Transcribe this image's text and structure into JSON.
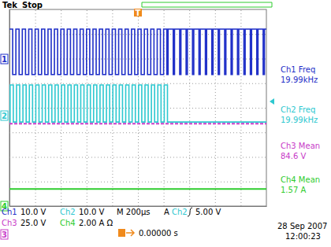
{
  "chart_data": {
    "type": "line",
    "xlim": [
      -1000,
      1000
    ],
    "xticks": [
      -800,
      -600,
      -400,
      -200,
      0,
      200,
      400,
      600,
      800
    ],
    "ylim": [
      -4,
      4
    ],
    "yticks": [
      -3,
      -2,
      -1,
      0,
      1,
      2,
      3
    ],
    "grid": true,
    "tick_labels": false,
    "annotations": [
      "Tek",
      "Stop",
      "Ch1",
      "10.0 V",
      "Ch2",
      "10.0 V",
      "M 200µs",
      "A",
      "Ch2",
      "5.00 V",
      "Ch3",
      "25.0 V",
      "Ch4",
      "2.00 A Ω",
      "0.00000 s",
      "28 Sep 2007",
      "12:00:23",
      "T"
    ],
    "series": [
      {
        "name": "1",
        "color": "#1f2fc8",
        "line_style": "step",
        "measure": "Ch1 Freq",
        "reading": "19.99kHz",
        "x": [
          -1000,
          -975,
          -950,
          -925,
          -900,
          -875,
          -850,
          -825,
          -800,
          -775,
          -750,
          -725,
          -700,
          -675,
          -650,
          -625,
          -600,
          -575,
          -550,
          -525,
          -500,
          -475,
          -450,
          -425,
          -400,
          -375,
          -350,
          -325,
          -300,
          -275,
          -250,
          -225,
          -200,
          -175,
          -150,
          -125,
          -100,
          -75,
          -50,
          -25,
          0,
          25,
          50,
          75,
          100,
          125,
          150,
          175,
          200,
          225,
          235,
          275,
          285,
          325,
          335,
          375,
          385,
          425,
          435,
          475,
          485,
          525,
          535,
          575,
          585,
          625,
          635,
          675,
          685,
          725,
          735,
          775,
          785,
          825,
          835,
          875,
          885,
          925,
          935,
          975,
          985,
          1000
        ],
        "values": [
          3.2,
          1.35,
          3.2,
          1.35,
          3.2,
          1.35,
          3.2,
          1.35,
          3.2,
          1.35,
          3.2,
          1.35,
          3.2,
          1.35,
          3.2,
          1.35,
          3.2,
          1.35,
          3.2,
          1.35,
          3.2,
          1.35,
          3.2,
          1.35,
          3.2,
          1.35,
          3.2,
          1.35,
          3.2,
          1.35,
          3.2,
          1.35,
          3.2,
          1.35,
          3.2,
          1.35,
          3.2,
          1.35,
          3.2,
          1.35,
          3.2,
          1.35,
          3.2,
          1.35,
          3.2,
          1.35,
          3.2,
          1.35,
          3.2,
          1.35,
          3.2,
          1.35,
          3.2,
          1.35,
          3.2,
          1.35,
          3.2,
          1.35,
          3.2,
          1.35,
          3.2,
          1.35,
          3.2,
          1.35,
          3.2,
          1.35,
          3.2,
          1.35,
          3.2,
          1.35,
          3.2,
          1.35,
          3.2,
          1.35,
          3.2,
          1.35,
          3.2,
          1.35,
          3.2,
          1.35,
          3.2,
          3.2
        ]
      },
      {
        "name": "2",
        "color": "#2ec8d0",
        "line_style": "step",
        "measure": "Ch2 Freq",
        "reading": "19.99kHz",
        "x": [
          -1000,
          -995,
          -970,
          -945,
          -920,
          -895,
          -870,
          -845,
          -820,
          -795,
          -770,
          -745,
          -720,
          -695,
          -670,
          -645,
          -620,
          -595,
          -570,
          -545,
          -520,
          -495,
          -470,
          -445,
          -420,
          -395,
          -370,
          -345,
          -320,
          -295,
          -270,
          -245,
          -220,
          -195,
          -170,
          -145,
          -120,
          -95,
          -70,
          -45,
          -20,
          5,
          30,
          55,
          80,
          105,
          130,
          155,
          180,
          205,
          230,
          1000
        ],
        "values": [
          -0.58,
          0.93,
          -0.58,
          0.93,
          -0.58,
          0.93,
          -0.58,
          0.93,
          -0.58,
          0.93,
          -0.58,
          0.93,
          -0.58,
          0.93,
          -0.58,
          0.93,
          -0.58,
          0.93,
          -0.58,
          0.93,
          -0.58,
          0.93,
          -0.58,
          0.93,
          -0.58,
          0.93,
          -0.58,
          0.93,
          -0.58,
          0.93,
          -0.58,
          0.93,
          -0.58,
          0.93,
          -0.58,
          0.93,
          -0.58,
          0.93,
          -0.58,
          0.93,
          -0.58,
          0.93,
          -0.58,
          0.93,
          -0.58,
          0.93,
          -0.58,
          0.93,
          -0.58,
          0.93,
          -0.58,
          -0.58
        ]
      },
      {
        "name": "3",
        "color": "#c83cc8",
        "line_style": "dashed",
        "measure": "Ch3 Mean",
        "reading": "84.6 V",
        "x": [
          -1000,
          1000
        ],
        "values": [
          -0.65,
          -0.65
        ]
      },
      {
        "name": "4",
        "color": "#2ecc2e",
        "line_style": "solid",
        "measure": "Ch4 Mean",
        "reading": "1.57 A",
        "x": [
          -1000,
          1000
        ],
        "values": [
          -3.3,
          -3.3
        ]
      }
    ]
  }
}
